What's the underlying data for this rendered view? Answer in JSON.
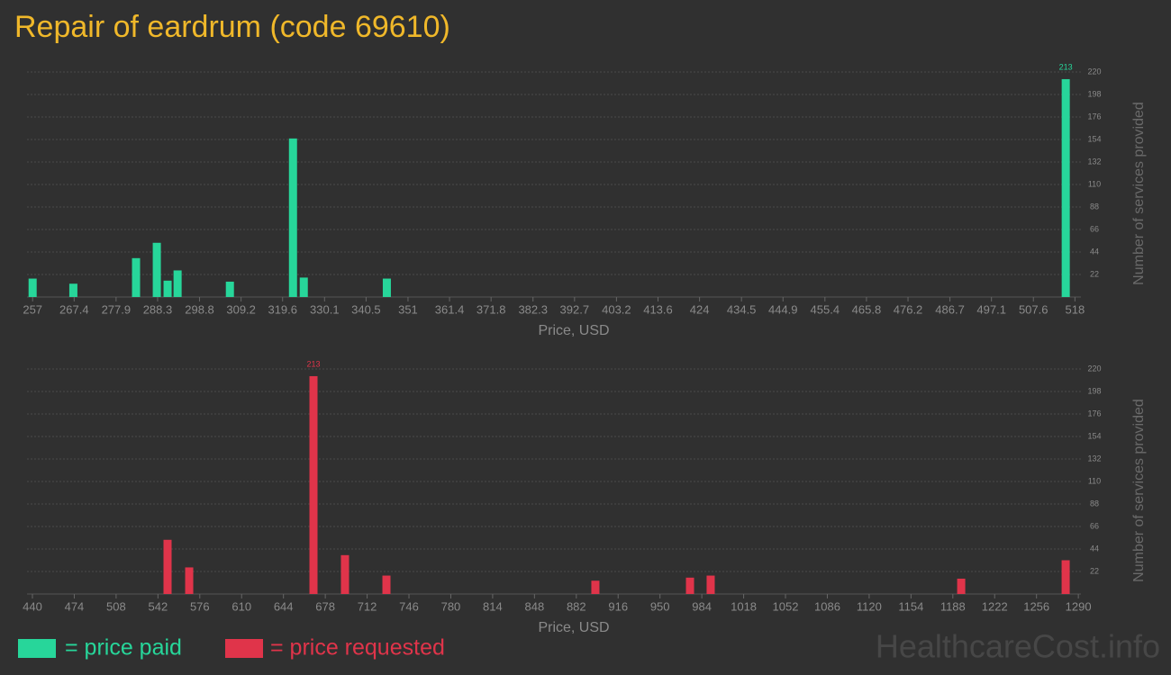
{
  "title": "Repair of eardrum (code 69610)",
  "watermark": "HealthcareCost.info",
  "chart_data": [
    {
      "type": "bar",
      "grid": true,
      "x": [
        257,
        267.2,
        282.9,
        288.1,
        290.8,
        293.3,
        306.4,
        322.2,
        324.9,
        345.7,
        515.7
      ],
      "series": [
        {
          "name": "= price paid",
          "color": "#27d69a",
          "values": [
            18,
            13,
            38,
            53,
            16,
            26,
            15,
            155,
            19,
            18,
            213
          ]
        }
      ],
      "xlim": [
        255.6,
        519.5
      ],
      "xticks": [
        257,
        267.4,
        277.9,
        288.3,
        298.8,
        309.2,
        319.6,
        330.1,
        340.5,
        351,
        361.4,
        371.8,
        382.3,
        392.7,
        403.2,
        413.6,
        424,
        434.5,
        444.9,
        455.4,
        465.8,
        476.2,
        486.7,
        497.1,
        507.6,
        518
      ],
      "ylim": [
        0,
        220
      ],
      "yticks": [
        22,
        44,
        66,
        88,
        110,
        132,
        154,
        176,
        198,
        220
      ],
      "x_label": "Price, USD",
      "y_label": "Number of services provided"
    },
    {
      "type": "bar",
      "grid": true,
      "x": [
        549.8,
        567.4,
        668.4,
        694,
        727.7,
        897.5,
        974.4,
        991.2,
        1194.8,
        1279.7
      ],
      "series": [
        {
          "name": "= price requested",
          "color": "#e0344a",
          "values": [
            53,
            26,
            213,
            38,
            18,
            13,
            16,
            18,
            15,
            33
          ]
        }
      ],
      "xlim": [
        435.6,
        1292.1
      ],
      "xticks": [
        440,
        474,
        508,
        542,
        576,
        610,
        644,
        678,
        712,
        746,
        780,
        814,
        848,
        882,
        916,
        950,
        984,
        1018,
        1052,
        1086,
        1120,
        1154,
        1188,
        1222,
        1256,
        1290
      ],
      "ylim": [
        0,
        220
      ],
      "yticks": [
        22,
        44,
        66,
        88,
        110,
        132,
        154,
        176,
        198,
        220
      ],
      "x_label": "Price, USD",
      "y_label": "Number of services provided"
    }
  ]
}
